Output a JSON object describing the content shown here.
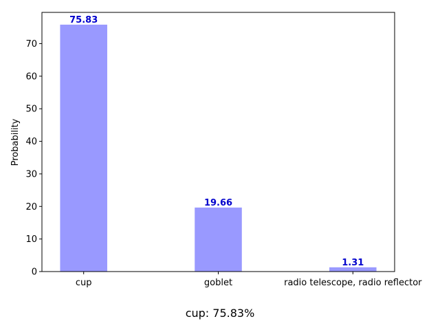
{
  "chart_data": {
    "type": "bar",
    "categories": [
      "cup",
      "goblet",
      "radio telescope, radio reflector"
    ],
    "values": [
      75.83,
      19.66,
      1.31
    ],
    "data_labels": [
      "75.83",
      "19.66",
      "1.31"
    ],
    "title": "",
    "xlabel": "",
    "ylabel": "Probability",
    "ylim": [
      0,
      79.6
    ],
    "yticks": [
      0,
      10,
      20,
      30,
      40,
      50,
      60,
      70
    ],
    "grid": false,
    "bar_color": "#9999ff",
    "label_color": "#0000cc"
  },
  "caption": "cup: 75.83%"
}
